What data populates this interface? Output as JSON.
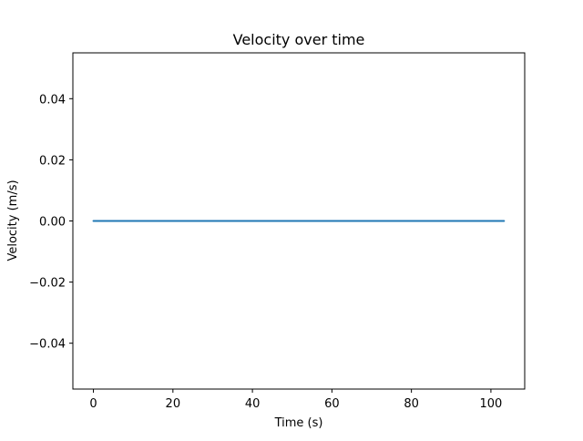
{
  "chart_data": {
    "type": "line",
    "title": "Velocity over time",
    "xlabel": "Time (s)",
    "ylabel": "Velocity (m/s)",
    "xlim": [
      -5.17,
      108.5
    ],
    "ylim": [
      -0.055,
      0.055
    ],
    "x_ticks": [
      0,
      20,
      40,
      60,
      80,
      100
    ],
    "x_tick_labels": [
      "0",
      "20",
      "40",
      "60",
      "80",
      "100"
    ],
    "y_ticks": [
      -0.04,
      -0.02,
      0.0,
      0.02,
      0.04
    ],
    "y_tick_labels": [
      "−0.04",
      "−0.02",
      "0.00",
      "0.02",
      "0.04"
    ],
    "grid": false,
    "series": [
      {
        "color": "#1f77b4",
        "x": [
          0,
          103.3
        ],
        "y": [
          0,
          0
        ]
      }
    ]
  }
}
